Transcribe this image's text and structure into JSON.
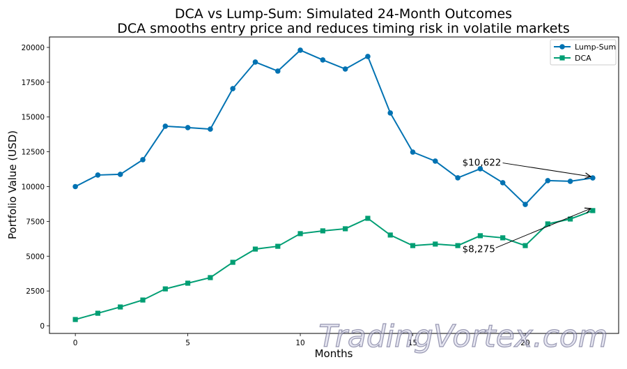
{
  "chart_data": {
    "type": "line",
    "title": "DCA vs Lump-Sum: Simulated 24-Month Outcomes",
    "subtitle": "DCA smooths entry price and reduces timing risk in volatile markets",
    "xlabel": "Months",
    "ylabel": "Portfolio Value (USD)",
    "xlim": [
      -1.15,
      24.15
    ],
    "ylim": [
      -550,
      20750
    ],
    "xticks": [
      0,
      5,
      10,
      15,
      20
    ],
    "yticks": [
      0,
      2500,
      5000,
      7500,
      10000,
      12500,
      15000,
      17500,
      20000
    ],
    "grid": false,
    "legend_placement": "top-right",
    "x": [
      0,
      1,
      2,
      3,
      4,
      5,
      6,
      7,
      8,
      9,
      10,
      11,
      12,
      13,
      14,
      15,
      16,
      17,
      18,
      19,
      20,
      21,
      22,
      23
    ],
    "series": [
      {
        "name": "Lump-Sum",
        "color": "#0072b2",
        "marker": "circle",
        "values": [
          10000,
          10830,
          10880,
          11930,
          14340,
          14240,
          14130,
          17040,
          18950,
          18300,
          19800,
          19100,
          18450,
          19350,
          15290,
          12480,
          11830,
          10630,
          11280,
          10280,
          8720,
          10430,
          10380,
          10622
        ]
      },
      {
        "name": "DCA",
        "color": "#009e73",
        "marker": "square",
        "values": [
          450,
          900,
          1350,
          1850,
          2650,
          3060,
          3460,
          4560,
          5510,
          5710,
          6620,
          6820,
          6970,
          7720,
          6520,
          5760,
          5870,
          5760,
          6470,
          6320,
          5760,
          7320,
          7670,
          8275
        ]
      }
    ],
    "annotations": [
      {
        "text": "$10,622",
        "x": 23,
        "y": 10622,
        "text_x": 17.2,
        "text_y": 11500
      },
      {
        "text": "$8,275",
        "x": 23,
        "y": 8275,
        "text_x": 17.2,
        "text_y": 5300
      }
    ]
  },
  "watermark": "TradingVortex.com"
}
